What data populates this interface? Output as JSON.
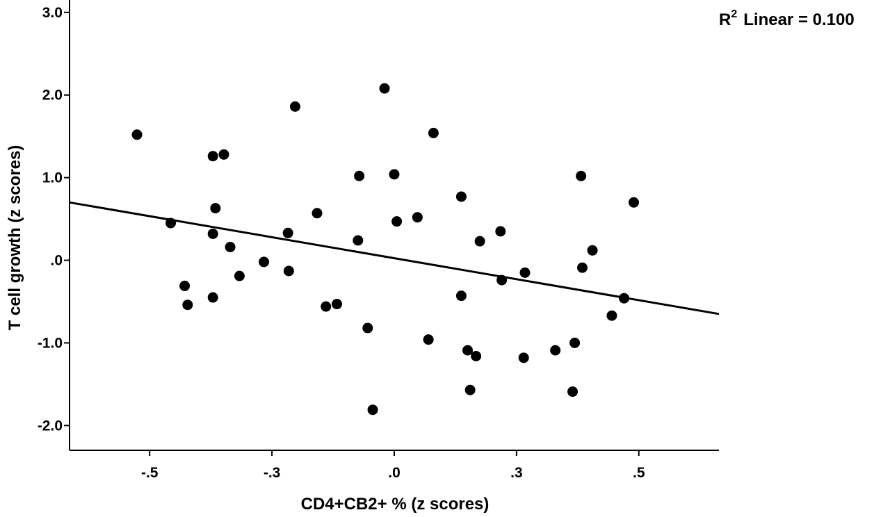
{
  "chart_data": {
    "type": "scatter",
    "xlabel": "CD4+CB2+ %  (z scores)",
    "ylabel": "T cell growth (z scores)",
    "xlim": [
      -0.77,
      0.77
    ],
    "ylim": [
      -2.3,
      3.15
    ],
    "x_ticks": [
      {
        "value": -0.58,
        "label": "-.5"
      },
      {
        "value": -0.29,
        "label": "-.3"
      },
      {
        "value": 0.0,
        "label": ".0"
      },
      {
        "value": 0.29,
        "label": ".3"
      },
      {
        "value": 0.58,
        "label": ".5"
      }
    ],
    "y_ticks": [
      {
        "value": 3.0,
        "label": "3.0"
      },
      {
        "value": 2.0,
        "label": "2.0"
      },
      {
        "value": 1.0,
        "label": "1.0"
      },
      {
        "value": 0.0,
        "label": ".0"
      },
      {
        "value": -1.0,
        "label": "-1.0"
      },
      {
        "value": -2.0,
        "label": "-2.0"
      }
    ],
    "grid": false,
    "annotation": {
      "prefix": "R",
      "superscript": "2",
      "text": "Linear = 0.100"
    },
    "fit_line": {
      "x": [
        -0.77,
        0.77
      ],
      "y": [
        0.7,
        -0.65
      ]
    },
    "points": [
      {
        "x": -0.61,
        "y": 1.52
      },
      {
        "x": -0.53,
        "y": 0.45
      },
      {
        "x": -0.497,
        "y": -0.31
      },
      {
        "x": -0.49,
        "y": -0.54
      },
      {
        "x": -0.43,
        "y": 1.26
      },
      {
        "x": -0.43,
        "y": 0.32
      },
      {
        "x": -0.43,
        "y": -0.45
      },
      {
        "x": -0.424,
        "y": 0.63
      },
      {
        "x": -0.404,
        "y": 1.28
      },
      {
        "x": -0.389,
        "y": 0.16
      },
      {
        "x": -0.367,
        "y": -0.19
      },
      {
        "x": -0.309,
        "y": -0.02
      },
      {
        "x": -0.252,
        "y": 0.33
      },
      {
        "x": -0.25,
        "y": -0.13
      },
      {
        "x": -0.235,
        "y": 1.86
      },
      {
        "x": -0.183,
        "y": 0.57
      },
      {
        "x": -0.162,
        "y": -0.56
      },
      {
        "x": -0.136,
        "y": -0.53
      },
      {
        "x": -0.086,
        "y": 0.24
      },
      {
        "x": -0.083,
        "y": 1.02
      },
      {
        "x": -0.063,
        "y": -0.82
      },
      {
        "x": -0.051,
        "y": -1.81
      },
      {
        "x": -0.023,
        "y": 2.08
      },
      {
        "x": 0.0,
        "y": 1.04
      },
      {
        "x": 0.006,
        "y": 0.47
      },
      {
        "x": 0.055,
        "y": 0.52
      },
      {
        "x": 0.081,
        "y": -0.96
      },
      {
        "x": 0.093,
        "y": 1.54
      },
      {
        "x": 0.159,
        "y": 0.77
      },
      {
        "x": 0.159,
        "y": -0.43
      },
      {
        "x": 0.174,
        "y": -1.09
      },
      {
        "x": 0.18,
        "y": -1.57
      },
      {
        "x": 0.194,
        "y": -1.16
      },
      {
        "x": 0.203,
        "y": 0.23
      },
      {
        "x": 0.252,
        "y": 0.35
      },
      {
        "x": 0.255,
        "y": -0.24
      },
      {
        "x": 0.307,
        "y": -1.18
      },
      {
        "x": 0.31,
        "y": -0.15
      },
      {
        "x": 0.382,
        "y": -1.09
      },
      {
        "x": 0.423,
        "y": -1.59
      },
      {
        "x": 0.428,
        "y": -1.0
      },
      {
        "x": 0.443,
        "y": 1.02
      },
      {
        "x": 0.446,
        "y": -0.09
      },
      {
        "x": 0.47,
        "y": 0.12
      },
      {
        "x": 0.516,
        "y": -0.67
      },
      {
        "x": 0.545,
        "y": -0.46
      },
      {
        "x": 0.568,
        "y": 0.7
      }
    ]
  }
}
